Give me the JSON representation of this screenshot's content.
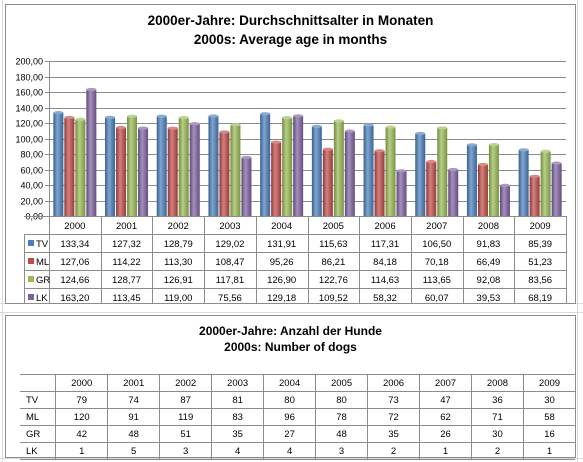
{
  "chart_data": [
    {
      "type": "bar",
      "title": "2000er-Jahre: Durchschnittsalter in Monaten",
      "subtitle": "2000s: Average age in months",
      "categories": [
        "2000",
        "2001",
        "2002",
        "2003",
        "2004",
        "2005",
        "2006",
        "2007",
        "2008",
        "2009"
      ],
      "series": [
        {
          "name": "TV",
          "values": [
            133.34,
            127.32,
            128.79,
            129.02,
            131.91,
            115.63,
            117.31,
            106.5,
            91.83,
            85.39
          ],
          "labels": [
            "133,34",
            "127,32",
            "128,79",
            "129,02",
            "131,91",
            "115,63",
            "117,31",
            "106,50",
            "91,83",
            "85,39"
          ]
        },
        {
          "name": "ML",
          "values": [
            127.06,
            114.22,
            113.3,
            108.47,
            95.26,
            86.21,
            84.18,
            70.18,
            66.49,
            51.23
          ],
          "labels": [
            "127,06",
            "114,22",
            "113,30",
            "108,47",
            "95,26",
            "86,21",
            "84,18",
            "70,18",
            "66,49",
            "51,23"
          ]
        },
        {
          "name": "GR",
          "values": [
            124.66,
            128.77,
            126.91,
            117.81,
            126.9,
            122.76,
            114.63,
            113.65,
            92.08,
            83.56
          ],
          "labels": [
            "124,66",
            "128,77",
            "126,91",
            "117,81",
            "126,90",
            "122,76",
            "114,63",
            "113,65",
            "92,08",
            "83,56"
          ]
        },
        {
          "name": "LK",
          "values": [
            163.2,
            113.45,
            119.0,
            75.56,
            129.18,
            109.52,
            58.32,
            60.07,
            39.53,
            68.19
          ],
          "labels": [
            "163,20",
            "113,45",
            "119,00",
            "75,56",
            "129,18",
            "109,52",
            "58,32",
            "60,07",
            "39,53",
            "68,19"
          ]
        }
      ],
      "ylim": [
        0,
        200
      ],
      "yticks": [
        "0,00",
        "20,00",
        "40,00",
        "60,00",
        "80,00",
        "100,00",
        "120,00",
        "140,00",
        "160,00",
        "180,00",
        "200,00"
      ],
      "grid": true,
      "legend": "data-table",
      "colors": {
        "TV": "#4a7ebb",
        "ML": "#be4b48",
        "GR": "#98b954",
        "LK": "#7d60a0"
      }
    },
    {
      "type": "table",
      "title": "2000er-Jahre: Anzahl der Hunde",
      "subtitle": "2000s: Number of dogs",
      "categories": [
        "2000",
        "2001",
        "2002",
        "2003",
        "2004",
        "2005",
        "2006",
        "2007",
        "2008",
        "2009"
      ],
      "rows": [
        {
          "name": "TV",
          "values": [
            79,
            74,
            87,
            81,
            80,
            80,
            73,
            47,
            36,
            30
          ]
        },
        {
          "name": "ML",
          "values": [
            120,
            91,
            119,
            83,
            96,
            78,
            72,
            62,
            71,
            58
          ]
        },
        {
          "name": "GR",
          "values": [
            42,
            48,
            51,
            35,
            27,
            48,
            35,
            26,
            30,
            16
          ]
        },
        {
          "name": "LK",
          "values": [
            1,
            5,
            3,
            4,
            4,
            3,
            2,
            1,
            2,
            1
          ]
        }
      ]
    }
  ]
}
